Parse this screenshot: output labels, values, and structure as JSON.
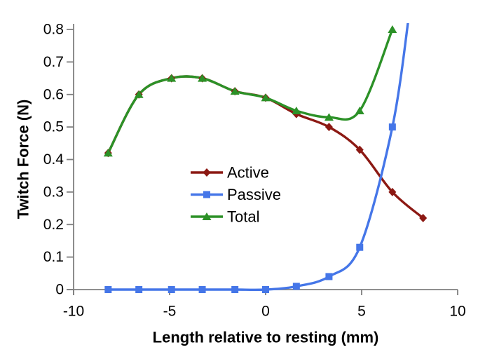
{
  "chart_data": {
    "type": "line",
    "title": "",
    "xlabel": "Length relative to resting (mm)",
    "ylabel": "Twitch Force (N)",
    "xlim": [
      -10,
      10
    ],
    "ylim": [
      0,
      0.8
    ],
    "x_tick_labels": [
      "-10",
      "-5",
      "0",
      "5",
      "10"
    ],
    "y_tick_labels": [
      "0",
      "0.1",
      "0.2",
      "0.3",
      "0.4",
      "0.5",
      "0.6",
      "0.7",
      "0.8"
    ],
    "grid": false,
    "legend_position": "inside-center",
    "axis_color": "#7f7f7f",
    "text_color": "#000000",
    "background_color": "#ffffff",
    "series": [
      {
        "name": "Active",
        "color": "#8c1913",
        "marker": "diamond",
        "smooth": true,
        "x": [
          -8.2,
          -6.6,
          -4.9,
          -3.3,
          -1.6,
          0,
          1.6,
          3.3,
          4.9,
          6.6,
          8.2
        ],
        "y": [
          0.42,
          0.6,
          0.65,
          0.65,
          0.61,
          0.59,
          0.54,
          0.5,
          0.43,
          0.3,
          0.22
        ]
      },
      {
        "name": "Passive",
        "color": "#4576e8",
        "marker": "square",
        "smooth": true,
        "x": [
          -8.2,
          -6.6,
          -4.9,
          -3.3,
          -1.6,
          0,
          1.6,
          3.3,
          4.9,
          6.6
        ],
        "y": [
          0,
          0,
          0,
          0,
          0,
          0,
          0.01,
          0.04,
          0.13,
          0.5
        ],
        "offscale_exit": {
          "x": 7.5,
          "y": 0.86
        }
      },
      {
        "name": "Total",
        "color": "#2c9127",
        "marker": "triangle",
        "smooth": true,
        "x": [
          -8.2,
          -6.6,
          -4.9,
          -3.3,
          -1.6,
          0,
          1.6,
          3.3,
          4.9,
          6.6
        ],
        "y": [
          0.42,
          0.6,
          0.65,
          0.65,
          0.61,
          0.59,
          0.55,
          0.53,
          0.55,
          0.8
        ]
      }
    ]
  }
}
